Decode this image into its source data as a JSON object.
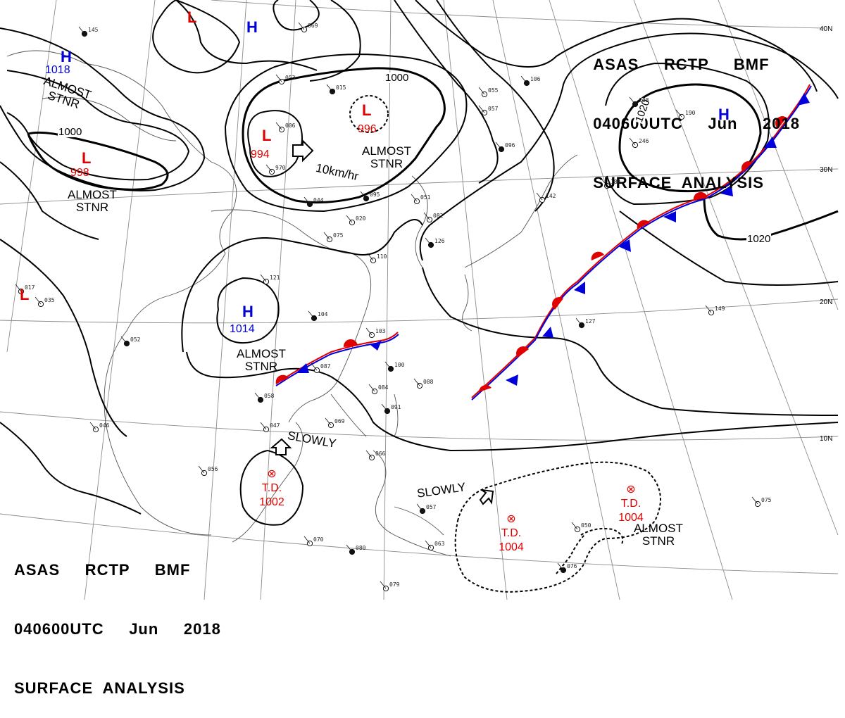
{
  "header_top": {
    "line1": "ASAS     RCTP     BMF",
    "line2": "040600UTC     Jun     2018",
    "line3": "SURFACE  ANALYSIS"
  },
  "header_bottom": {
    "line1": "ASAS     RCTP     BMF",
    "line2": "040600UTC     Jun     2018",
    "line3": "SURFACE  ANALYSIS"
  },
  "latitudes": [
    "40N",
    "30N",
    "20N",
    "10N"
  ],
  "isobars": {
    "a": "1000",
    "b": "1000",
    "c": "1020",
    "d": "1020"
  },
  "systems": {
    "high_nw": {
      "symbol": "H",
      "pressure": "1018"
    },
    "high_ne": {
      "symbol": "H"
    },
    "high_top": {
      "symbol": "H"
    },
    "high_south": {
      "symbol": "H",
      "pressure": "1014"
    },
    "low_top": {
      "symbol": "L"
    },
    "low_nw": {
      "symbol": "L",
      "pressure": "998"
    },
    "low_center": {
      "symbol": "L",
      "pressure": "994"
    },
    "low_dashed": {
      "symbol": "L",
      "pressure": "996"
    },
    "low_west": {
      "symbol": "L"
    },
    "td_1": {
      "symbol": "⊗",
      "label": "T.D.",
      "pressure": "1002"
    },
    "td_2": {
      "symbol": "⊗",
      "label": "T.D.",
      "pressure": "1004"
    },
    "td_3": {
      "symbol": "⊗",
      "label": "T.D.",
      "pressure": "1004"
    }
  },
  "labels": {
    "almost_stnr_1": "ALMOST\nSTNR",
    "almost_stnr_2": "ALMOST\nSTNR",
    "almost_stnr_3": "ALMOST\nSTNR",
    "almost_stnr_4": "ALMOST\nSTNR",
    "almost_stnr_5": "ALMOST\nSTNR",
    "speed": "10km/hr",
    "slowly_1": "SLOWLY",
    "slowly_2": "SLOWLY"
  },
  "station_samples": [
    "145",
    "069",
    "053",
    "015",
    "006",
    "970",
    "044",
    "075",
    "020",
    "095",
    "051",
    "082",
    "126",
    "110",
    "121",
    "104",
    "103",
    "087",
    "100",
    "088",
    "084",
    "091",
    "069",
    "047",
    "058",
    "056",
    "035",
    "052",
    "046",
    "017",
    "127",
    "149",
    "184",
    "208",
    "190",
    "246",
    "106",
    "055",
    "057",
    "096",
    "142",
    "066",
    "057",
    "063",
    "070",
    "080",
    "079",
    "075",
    "076",
    "050"
  ],
  "colors": {
    "low": "#e00000",
    "high": "#0000dd",
    "front_warm": "#e00000",
    "front_cold": "#0000dd",
    "line": "#000000",
    "grid": "#8a8a8a"
  }
}
